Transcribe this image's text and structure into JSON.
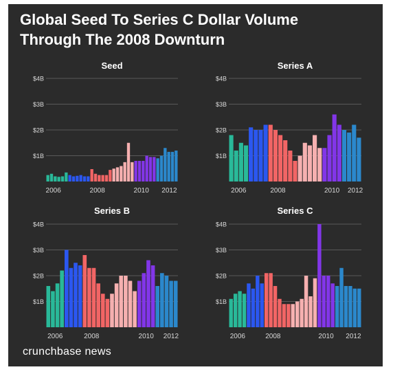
{
  "title_line1": "Global Seed To Series C Dollar Volume",
  "title_line2": "Through The 2008 Downturn",
  "brand": "crunchbase news",
  "colors": {
    "background": "#2b2b2b",
    "gridline": "#5a5a5a",
    "text": "#ffffff",
    "axis_text": "#d9d9d9",
    "year_colors": {
      "2006": "#29b999",
      "2007": "#2b57f0",
      "2008": "#f26565",
      "2009": "#f6b0b0",
      "2010": "#8236e8",
      "2011": "#2b88cc",
      "2012": "#2b88cc"
    }
  },
  "chart_data": [
    {
      "type": "bar",
      "title": "Seed",
      "ylim": [
        0,
        4
      ],
      "y_ticks": [
        {
          "v": 1,
          "label": "$1B"
        },
        {
          "v": 2,
          "label": "$2B"
        },
        {
          "v": 3,
          "label": "$3B"
        },
        {
          "v": 4,
          "label": "$4B"
        }
      ],
      "x_ticks": [
        "2006",
        "2008",
        "2010",
        "2012"
      ],
      "grid": true,
      "years": [
        "2006",
        "2006",
        "2006",
        "2006",
        "2006",
        "2006",
        "2007",
        "2007",
        "2007",
        "2007",
        "2007",
        "2007",
        "2008",
        "2008",
        "2008",
        "2008",
        "2008",
        "2008",
        "2009",
        "2009",
        "2009",
        "2009",
        "2009",
        "2009",
        "2010",
        "2010",
        "2010",
        "2010",
        "2010",
        "2010",
        "2011",
        "2011",
        "2011",
        "2011",
        "2011",
        "2011"
      ],
      "values": [
        0.25,
        0.3,
        0.2,
        0.18,
        0.2,
        0.35,
        0.25,
        0.2,
        0.22,
        0.25,
        0.2,
        0.2,
        0.48,
        0.3,
        0.25,
        0.25,
        0.25,
        0.45,
        0.5,
        0.55,
        0.6,
        0.75,
        1.5,
        0.75,
        0.8,
        0.8,
        0.8,
        1.0,
        0.95,
        0.95,
        0.9,
        1.0,
        1.3,
        1.15,
        1.15,
        1.2
      ]
    },
    {
      "type": "bar",
      "title": "Series A",
      "ylim": [
        0,
        4
      ],
      "y_ticks": [
        {
          "v": 1,
          "label": "$1B"
        },
        {
          "v": 2,
          "label": "$2B"
        },
        {
          "v": 3,
          "label": "$3B"
        },
        {
          "v": 4,
          "label": "$4B"
        }
      ],
      "x_ticks": [
        "2006",
        "2008",
        "2010",
        "2012"
      ],
      "grid": true,
      "years": [
        "2006",
        "2006",
        "2006",
        "2006",
        "2007",
        "2007",
        "2007",
        "2007",
        "2008",
        "2008",
        "2008",
        "2008",
        "2008",
        "2008",
        "2009",
        "2009",
        "2009",
        "2009",
        "2009",
        "2010",
        "2010",
        "2010",
        "2010",
        "2011",
        "2011",
        "2011",
        "2011"
      ],
      "values": [
        1.8,
        1.2,
        1.5,
        1.4,
        2.1,
        2.0,
        2.0,
        2.2,
        2.2,
        2.0,
        1.8,
        1.6,
        1.2,
        0.8,
        1.0,
        1.5,
        1.4,
        1.8,
        1.3,
        1.3,
        1.8,
        2.6,
        2.2,
        2.0,
        1.9,
        2.2,
        1.7
      ]
    },
    {
      "type": "bar",
      "title": "Series B",
      "ylim": [
        0,
        4
      ],
      "y_ticks": [
        {
          "v": 1,
          "label": "$1B"
        },
        {
          "v": 2,
          "label": "$2B"
        },
        {
          "v": 3,
          "label": "$3B"
        },
        {
          "v": 4,
          "label": "$4B"
        }
      ],
      "x_ticks": [
        "2006",
        "2008",
        "2010",
        "2012"
      ],
      "grid": true,
      "years": [
        "2006",
        "2006",
        "2006",
        "2006",
        "2007",
        "2007",
        "2007",
        "2007",
        "2008",
        "2008",
        "2008",
        "2008",
        "2008",
        "2008",
        "2009",
        "2009",
        "2009",
        "2009",
        "2009",
        "2009",
        "2010",
        "2010",
        "2010",
        "2010",
        "2011",
        "2011",
        "2011",
        "2011",
        "2011"
      ],
      "values": [
        1.6,
        1.4,
        1.7,
        2.2,
        3.0,
        2.3,
        2.5,
        2.4,
        2.8,
        2.3,
        2.3,
        1.7,
        1.3,
        1.1,
        1.3,
        1.7,
        2.0,
        2.0,
        1.8,
        1.4,
        1.8,
        2.1,
        2.6,
        2.4,
        1.6,
        2.1,
        2.0,
        1.8,
        1.8
      ]
    },
    {
      "type": "bar",
      "title": "Series C",
      "ylim": [
        0,
        4
      ],
      "y_ticks": [
        {
          "v": 1,
          "label": "$1B"
        },
        {
          "v": 2,
          "label": "$2B"
        },
        {
          "v": 3,
          "label": "$3B"
        },
        {
          "v": 4,
          "label": "$4B"
        }
      ],
      "x_ticks": [
        "2006",
        "2008",
        "2010",
        "2012"
      ],
      "grid": true,
      "years": [
        "2006",
        "2006",
        "2006",
        "2006",
        "2007",
        "2007",
        "2007",
        "2007",
        "2008",
        "2008",
        "2008",
        "2008",
        "2008",
        "2008",
        "2009",
        "2009",
        "2009",
        "2009",
        "2009",
        "2009",
        "2010",
        "2010",
        "2010",
        "2010",
        "2011",
        "2011",
        "2011",
        "2011",
        "2011",
        "2011"
      ],
      "values": [
        1.1,
        1.3,
        1.4,
        1.3,
        1.7,
        1.5,
        2.0,
        1.7,
        2.1,
        2.1,
        1.6,
        1.1,
        0.9,
        0.9,
        0.9,
        1.0,
        1.1,
        2.0,
        1.2,
        1.9,
        4.0,
        2.0,
        2.0,
        1.7,
        1.6,
        2.3,
        1.6,
        1.6,
        1.5,
        1.5
      ]
    }
  ]
}
